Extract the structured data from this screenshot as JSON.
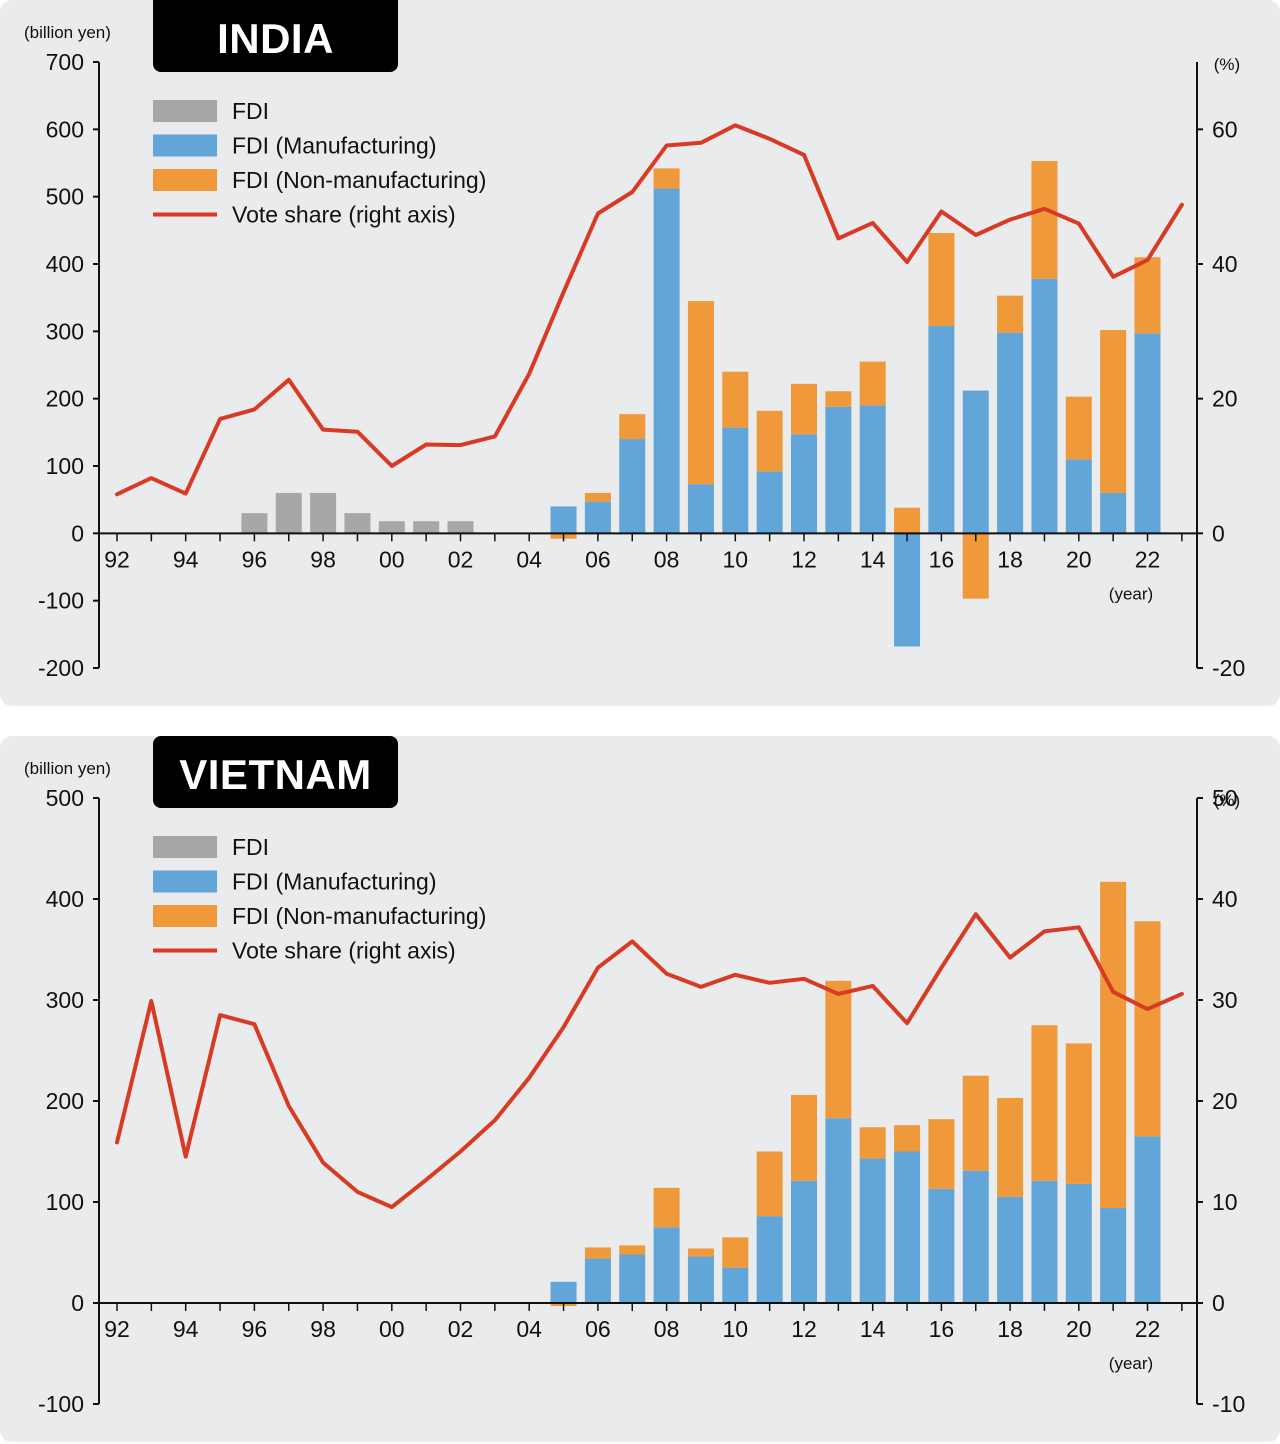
{
  "colors": {
    "fdi": "#a7a7a7",
    "manufacturing": "#62a5d8",
    "non_manufacturing": "#f0993a",
    "vote_share": "#d93a24",
    "axis": "#111111"
  },
  "chart_data": [
    {
      "type": "bar",
      "title": "INDIA",
      "ylabel_left": "(billion yen)",
      "ylabel_right": "(%)",
      "xlabel": "(year)",
      "ylim_left": [
        -200,
        700
      ],
      "ylim_right": [
        -20,
        70
      ],
      "yticks_left": [
        "700",
        "600",
        "500",
        "400",
        "300",
        "200",
        "100",
        "0",
        "-100",
        "-200"
      ],
      "yticks_left_values": [
        700,
        600,
        500,
        400,
        300,
        200,
        100,
        0,
        -100,
        -200
      ],
      "yticks_right": [
        "60",
        "40",
        "20",
        "0",
        "-20"
      ],
      "yticks_right_values": [
        60,
        40,
        20,
        0,
        -20
      ],
      "xticks": [
        "92",
        "94",
        "96",
        "98",
        "00",
        "02",
        "04",
        "06",
        "08",
        "10",
        "12",
        "14",
        "16",
        "18",
        "20",
        "22"
      ],
      "years": [
        1992,
        1993,
        1994,
        1995,
        1996,
        1997,
        1998,
        1999,
        2000,
        2001,
        2002,
        2003,
        2004,
        2005,
        2006,
        2007,
        2008,
        2009,
        2010,
        2011,
        2012,
        2013,
        2014,
        2015,
        2016,
        2017,
        2018,
        2019,
        2020,
        2021,
        2022,
        2023
      ],
      "legend": [
        "FDI",
        "FDI (Manufacturing)",
        "FDI (Non-manufacturing)",
        "Vote share (right axis)"
      ],
      "series": [
        {
          "name": "FDI",
          "values": [
            null,
            null,
            null,
            null,
            30,
            60,
            60,
            30,
            18,
            18,
            18,
            null,
            null,
            null,
            null,
            null,
            null,
            null,
            null,
            null,
            null,
            null,
            null,
            null,
            null,
            null,
            null,
            null,
            null,
            null,
            null,
            null
          ]
        },
        {
          "name": "FDI (Manufacturing)",
          "values": [
            null,
            null,
            null,
            null,
            null,
            null,
            null,
            null,
            null,
            null,
            null,
            null,
            null,
            40,
            47,
            140,
            512,
            73,
            157,
            92,
            147,
            188,
            190,
            -168,
            308,
            212,
            298,
            378,
            110,
            60,
            297,
            null
          ]
        },
        {
          "name": "FDI (Non-manufacturing)",
          "values": [
            null,
            null,
            null,
            null,
            null,
            null,
            null,
            null,
            null,
            null,
            null,
            null,
            null,
            -8,
            13,
            37,
            30,
            272,
            83,
            90,
            75,
            23,
            65,
            38,
            138,
            -97,
            55,
            175,
            93,
            242,
            113,
            null
          ]
        },
        {
          "name": "Vote share (right axis)",
          "values": [
            5.8,
            8.2,
            5.9,
            17.0,
            18.4,
            22.8,
            15.4,
            15.1,
            10.0,
            13.2,
            13.1,
            14.4,
            23.7,
            35.8,
            47.5,
            50.7,
            57.6,
            58.0,
            60.6,
            58.6,
            56.2,
            43.8,
            46.1,
            40.3,
            47.8,
            44.3,
            46.6,
            48.2,
            46.0,
            38.1,
            40.6,
            48.8
          ]
        }
      ]
    },
    {
      "type": "bar",
      "title": "VIETNAM",
      "ylabel_left": "(billion yen)",
      "ylabel_right": "(%)",
      "xlabel": "(year)",
      "ylim_left": [
        -100,
        500
      ],
      "ylim_right": [
        -10,
        50
      ],
      "yticks_left": [
        "500",
        "400",
        "300",
        "200",
        "100",
        "0",
        "-100"
      ],
      "yticks_left_values": [
        500,
        400,
        300,
        200,
        100,
        0,
        -100
      ],
      "yticks_right": [
        "50",
        "40",
        "30",
        "20",
        "10",
        "0",
        "-10"
      ],
      "yticks_right_values": [
        50,
        40,
        30,
        20,
        10,
        0,
        -10
      ],
      "xticks": [
        "92",
        "94",
        "96",
        "98",
        "00",
        "02",
        "04",
        "06",
        "08",
        "10",
        "12",
        "14",
        "16",
        "18",
        "20",
        "22"
      ],
      "years": [
        1992,
        1993,
        1994,
        1995,
        1996,
        1997,
        1998,
        1999,
        2000,
        2001,
        2002,
        2003,
        2004,
        2005,
        2006,
        2007,
        2008,
        2009,
        2010,
        2011,
        2012,
        2013,
        2014,
        2015,
        2016,
        2017,
        2018,
        2019,
        2020,
        2021,
        2022,
        2023
      ],
      "legend": [
        "FDI",
        "FDI (Manufacturing)",
        "FDI (Non-manufacturing)",
        "Vote share (right axis)"
      ],
      "series": [
        {
          "name": "FDI",
          "values": [
            null,
            null,
            null,
            null,
            null,
            null,
            null,
            null,
            null,
            null,
            null,
            null,
            null,
            null,
            null,
            null,
            null,
            null,
            null,
            null,
            null,
            null,
            null,
            null,
            null,
            null,
            null,
            null,
            null,
            null,
            null,
            null
          ]
        },
        {
          "name": "FDI (Manufacturing)",
          "values": [
            null,
            null,
            null,
            null,
            null,
            null,
            null,
            null,
            null,
            null,
            null,
            null,
            null,
            21,
            44,
            48,
            75,
            46,
            35,
            86,
            121,
            183,
            143,
            150,
            113,
            131,
            105,
            121,
            118,
            94,
            165,
            null
          ]
        },
        {
          "name": "FDI (Non-manufacturing)",
          "values": [
            null,
            null,
            null,
            null,
            null,
            null,
            null,
            null,
            null,
            null,
            null,
            null,
            null,
            -3,
            11,
            9,
            39,
            8,
            30,
            64,
            85,
            136,
            31,
            26,
            69,
            94,
            98,
            154,
            139,
            323,
            213,
            null
          ]
        },
        {
          "name": "Vote share (right axis)",
          "values": [
            15.9,
            29.9,
            14.5,
            28.5,
            27.6,
            19.5,
            13.9,
            11.0,
            9.5,
            12.2,
            15.0,
            18.1,
            22.3,
            27.3,
            33.2,
            35.8,
            32.6,
            31.3,
            32.5,
            31.7,
            32.1,
            30.6,
            31.4,
            27.7,
            33.2,
            38.5,
            34.2,
            36.8,
            37.2,
            30.8,
            29.1,
            30.6
          ]
        }
      ]
    }
  ]
}
